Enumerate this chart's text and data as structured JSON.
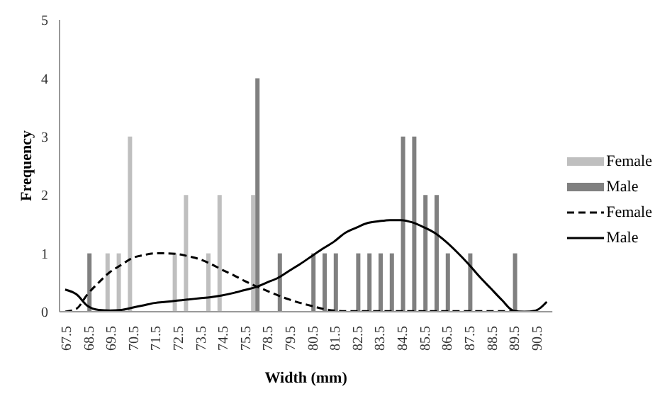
{
  "chart_data": {
    "type": "bar",
    "xlabel": "Width (mm)",
    "ylabel": "Frequency",
    "categories": [
      "67.5",
      null,
      "68.5",
      null,
      "69.5",
      null,
      "70.5",
      null,
      "71.5",
      null,
      "72.5",
      null,
      "73.5",
      null,
      "74.5",
      null,
      "75.5",
      null,
      "78.5",
      null,
      "79.5",
      null,
      "80.5",
      null,
      "81.5",
      null,
      "82.5",
      null,
      "83.5",
      null,
      "84.5",
      null,
      "85.5",
      null,
      "86.5",
      null,
      "87.5",
      null,
      "88.5",
      null,
      "89.5",
      null,
      "90.5",
      null
    ],
    "series": [
      {
        "name": "Female",
        "color": "#bfbfbf",
        "values": [
          0,
          0,
          0,
          0,
          1,
          1,
          3,
          0,
          0,
          0,
          1,
          2,
          0,
          1,
          2,
          0,
          0,
          2,
          0,
          0,
          0,
          0,
          0,
          0,
          0,
          0,
          0,
          0,
          0,
          0,
          0,
          0,
          0,
          0,
          0,
          0,
          0,
          0,
          0,
          0,
          0,
          0,
          0,
          0
        ]
      },
      {
        "name": "Male",
        "color": "#808080",
        "values": [
          0,
          0,
          1,
          0,
          0,
          0,
          0,
          0,
          0,
          0,
          0,
          0,
          0,
          0,
          0,
          0,
          0,
          4,
          0,
          1,
          0,
          0,
          1,
          1,
          1,
          0,
          1,
          1,
          1,
          1,
          3,
          3,
          2,
          2,
          1,
          0,
          1,
          0,
          0,
          0,
          1,
          0,
          0,
          0
        ]
      },
      {
        "name": "Female",
        "type": "line",
        "line_style": "dashed",
        "color": "#000000",
        "values": [
          0,
          0.05,
          0.3,
          0.5,
          0.68,
          0.8,
          0.92,
          0.97,
          1.0,
          1.0,
          0.99,
          0.95,
          0.9,
          0.82,
          0.72,
          0.63,
          0.53,
          0.44,
          0.36,
          0.28,
          0.21,
          0.15,
          0.1,
          0.05,
          0.02,
          0.01,
          0.01,
          0.01,
          0.01,
          0.01,
          0.01,
          0.01,
          0.01,
          0.01,
          0.01,
          0.01,
          0.01,
          0.01,
          0.01,
          0.01,
          0,
          null,
          null,
          null
        ]
      },
      {
        "name": "Male",
        "type": "line",
        "line_style": "solid",
        "color": "#000000",
        "values": [
          0.38,
          0.3,
          0.1,
          0.03,
          0.02,
          0.03,
          0.07,
          0.11,
          0.15,
          0.17,
          0.19,
          0.21,
          0.23,
          0.25,
          0.28,
          0.32,
          0.37,
          0.42,
          0.5,
          0.58,
          0.7,
          0.82,
          0.95,
          1.08,
          1.2,
          1.35,
          1.44,
          1.52,
          1.55,
          1.57,
          1.57,
          1.53,
          1.45,
          1.35,
          1.2,
          1.02,
          0.82,
          0.6,
          0.4,
          0.2,
          0.02,
          0,
          0.02,
          0.17
        ]
      }
    ],
    "ylim": [
      0,
      5
    ],
    "yticks": [
      0,
      1,
      2,
      3,
      4,
      5
    ],
    "grid": false,
    "legend": "right",
    "marker": "none"
  }
}
